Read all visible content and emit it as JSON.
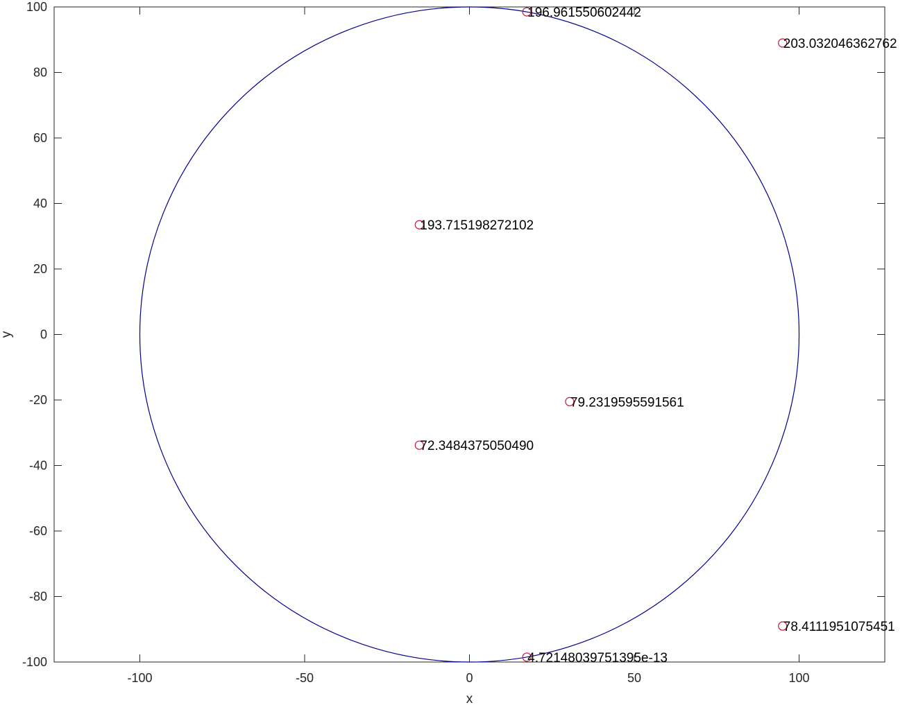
{
  "chart_data": {
    "type": "scatter",
    "title": "",
    "xlabel": "x",
    "ylabel": "y",
    "xlim": [
      -126,
      126
    ],
    "ylim": [
      -100,
      100
    ],
    "xticks": [
      -100,
      -50,
      0,
      50,
      100
    ],
    "yticks": [
      -100,
      -80,
      -60,
      -40,
      -20,
      0,
      20,
      40,
      60,
      80,
      100
    ],
    "xtick_labels": [
      "-100",
      "-50",
      "0",
      "50",
      "100"
    ],
    "ytick_labels": [
      "-100",
      "-80",
      "-60",
      "-40",
      "-20",
      "0",
      "20",
      "40",
      "60",
      "80",
      "100"
    ],
    "grid": false,
    "circle": {
      "center": [
        0,
        0
      ],
      "radius": 100,
      "color": "#00008b"
    },
    "marker_color": "#c8143c",
    "points": [
      {
        "x": 17.4,
        "y": 98.5,
        "label": "196.961550602442"
      },
      {
        "x": 95.0,
        "y": 89.0,
        "label": "203.032046362762"
      },
      {
        "x": -15.2,
        "y": 33.5,
        "label": "193.715198272102"
      },
      {
        "x": 30.4,
        "y": -20.5,
        "label": "79.2319595591561"
      },
      {
        "x": -15.2,
        "y": -33.8,
        "label": "72.3484375050490"
      },
      {
        "x": 95.0,
        "y": -89.0,
        "label": "78.4111951075451"
      },
      {
        "x": 17.4,
        "y": -98.5,
        "label": "4.72148039751395e-13"
      }
    ]
  }
}
